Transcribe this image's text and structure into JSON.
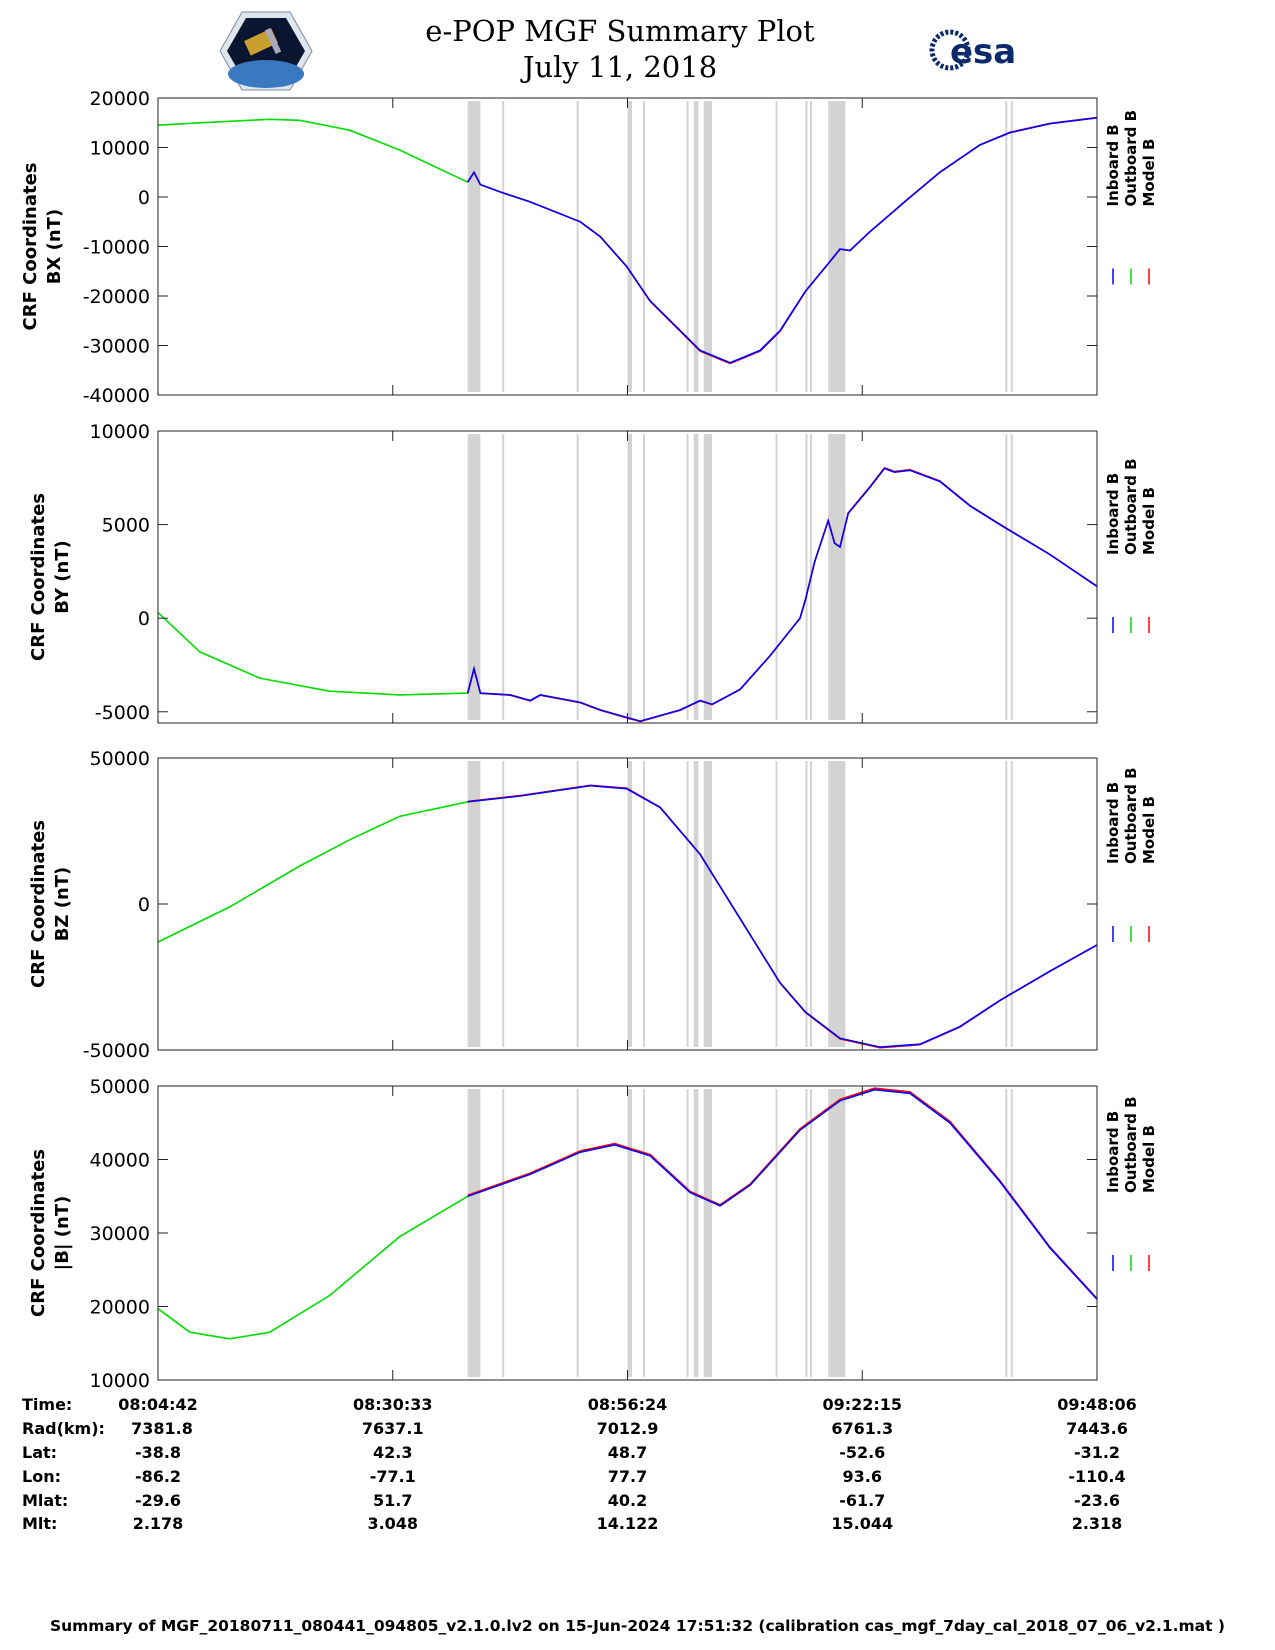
{
  "header": {
    "title": "e-POP MGF Summary Plot",
    "date": "July 11, 2018",
    "logo_left": "CASSIOPE",
    "logo_right": "esa"
  },
  "colors": {
    "inboard": "#0000ff",
    "outboard": "#00dd00",
    "model": "#ff0000",
    "gap_band": "#d3d3d3"
  },
  "chart_data": [
    {
      "type": "line",
      "ylabel": [
        "CRF Coordinates",
        "BX (nT)"
      ],
      "ylim": [
        -40000,
        20000
      ],
      "yticks": [
        "20000",
        "10000",
        "0",
        "-10000",
        "-20000",
        "-30000",
        "-40000"
      ],
      "ytick_values": [
        20000,
        10000,
        0,
        -10000,
        -20000,
        -30000,
        -40000
      ],
      "legend": [
        "Inboard B",
        "Outboard B",
        "Model B"
      ],
      "points": [
        [
          0,
          14500
        ],
        [
          4.6,
          15000
        ],
        [
          12.3,
          15700
        ],
        [
          15.6,
          15500
        ],
        [
          21.1,
          13500
        ],
        [
          26.6,
          9500
        ],
        [
          34.1,
          3000
        ],
        [
          34.8,
          5000
        ],
        [
          35.5,
          2500
        ],
        [
          37.7,
          1000
        ],
        [
          41.0,
          -1000
        ],
        [
          46.5,
          -5000
        ],
        [
          48.7,
          -8000
        ],
        [
          51.6,
          -14000
        ],
        [
          54.2,
          -21000
        ],
        [
          57.5,
          -27000
        ],
        [
          59.7,
          -31000
        ],
        [
          63.0,
          -33500
        ],
        [
          66.3,
          -31000
        ],
        [
          68.5,
          -27000
        ],
        [
          71.3,
          -19000
        ],
        [
          74.0,
          -13000
        ],
        [
          75.1,
          -10500
        ],
        [
          76.2,
          -10800
        ],
        [
          78.4,
          -7000
        ],
        [
          82.2,
          -1000
        ],
        [
          86.1,
          5000
        ],
        [
          90.5,
          10500
        ],
        [
          93.8,
          13000
        ],
        [
          98.2,
          14800
        ],
        [
          103.4,
          16000
        ]
      ]
    },
    {
      "type": "line",
      "ylabel": [
        "CRF Coordinates",
        "BY (nT)"
      ],
      "ylim": [
        -5600,
        10000
      ],
      "yticks": [
        "10000",
        "5000",
        "0",
        "-5000"
      ],
      "ytick_values": [
        10000,
        5000,
        0,
        -5000
      ],
      "legend": [
        "Inboard B",
        "Outboard B",
        "Model B"
      ],
      "points": [
        [
          0,
          300
        ],
        [
          4.6,
          -1800
        ],
        [
          11.2,
          -3200
        ],
        [
          18.9,
          -3900
        ],
        [
          26.6,
          -4100
        ],
        [
          34.1,
          -4000
        ],
        [
          34.8,
          -2700
        ],
        [
          35.5,
          -4000
        ],
        [
          38.8,
          -4100
        ],
        [
          41.0,
          -4400
        ],
        [
          42.1,
          -4100
        ],
        [
          46.5,
          -4500
        ],
        [
          48.7,
          -4900
        ],
        [
          51.6,
          -5300
        ],
        [
          53.1,
          -5500
        ],
        [
          55.3,
          -5200
        ],
        [
          57.5,
          -4900
        ],
        [
          59.7,
          -4400
        ],
        [
          61.0,
          -4600
        ],
        [
          64.1,
          -3800
        ],
        [
          67.4,
          -2000
        ],
        [
          70.7,
          0
        ],
        [
          71.3,
          1000
        ],
        [
          72.3,
          3000
        ],
        [
          73.8,
          5200
        ],
        [
          74.5,
          4000
        ],
        [
          75.1,
          3800
        ],
        [
          76.0,
          5600
        ],
        [
          78.4,
          7000
        ],
        [
          80.0,
          8000
        ],
        [
          81.1,
          7800
        ],
        [
          82.8,
          7900
        ],
        [
          86.1,
          7300
        ],
        [
          89.4,
          6000
        ],
        [
          92.7,
          5000
        ],
        [
          98.2,
          3400
        ],
        [
          103.4,
          1700
        ]
      ]
    },
    {
      "type": "line",
      "ylabel": [
        "CRF Coordinates",
        "BZ (nT)"
      ],
      "ylim": [
        -50000,
        50000
      ],
      "yticks": [
        "50000",
        "0",
        "-50000"
      ],
      "ytick_values": [
        50000,
        0,
        -50000
      ],
      "legend": [
        "Inboard B",
        "Outboard B",
        "Model B"
      ],
      "points": [
        [
          0,
          -13000
        ],
        [
          7.9,
          -1000
        ],
        [
          15.6,
          13000
        ],
        [
          21.1,
          22000
        ],
        [
          26.6,
          30000
        ],
        [
          34.1,
          35000
        ],
        [
          39.9,
          37000
        ],
        [
          47.6,
          40500
        ],
        [
          51.6,
          39500
        ],
        [
          55.3,
          33000
        ],
        [
          59.7,
          17000
        ],
        [
          64.1,
          -5000
        ],
        [
          68.5,
          -27000
        ],
        [
          71.3,
          -37000
        ],
        [
          75.1,
          -46000
        ],
        [
          79.5,
          -49000
        ],
        [
          83.9,
          -48000
        ],
        [
          88.3,
          -42000
        ],
        [
          92.7,
          -33000
        ],
        [
          98.2,
          -23000
        ],
        [
          103.4,
          -14000
        ]
      ]
    },
    {
      "type": "line",
      "ylabel": [
        "CRF Coordinates",
        "|B| (nT)"
      ],
      "ylim": [
        10000,
        50000
      ],
      "yticks": [
        "50000",
        "40000",
        "30000",
        "20000",
        "10000"
      ],
      "ytick_values": [
        50000,
        40000,
        30000,
        20000,
        10000
      ],
      "legend": [
        "Inboard B",
        "Outboard B",
        "Model B"
      ],
      "points": [
        [
          0,
          19700
        ],
        [
          3.5,
          16500
        ],
        [
          7.9,
          15600
        ],
        [
          12.3,
          16500
        ],
        [
          18.9,
          21500
        ],
        [
          26.6,
          29500
        ],
        [
          34.1,
          35000
        ],
        [
          41.0,
          38000
        ],
        [
          46.5,
          41000
        ],
        [
          50.3,
          42000
        ],
        [
          54.2,
          40500
        ],
        [
          58.6,
          35500
        ],
        [
          61.9,
          33700
        ],
        [
          65.2,
          36500
        ],
        [
          70.7,
          44000
        ],
        [
          75.1,
          48000
        ],
        [
          78.9,
          49500
        ],
        [
          82.8,
          49000
        ],
        [
          87.2,
          45000
        ],
        [
          92.7,
          37000
        ],
        [
          98.2,
          28000
        ],
        [
          103.4,
          21000
        ]
      ]
    }
  ],
  "x_range_minutes": [
    0,
    103.4
  ],
  "outboard_end_minute": 34.1,
  "gap_bands_minutes": [
    [
      34.1,
      35.5
    ],
    [
      37.9,
      38.0
    ],
    [
      46.1,
      46.2
    ],
    [
      51.7,
      52.2
    ],
    [
      53.4,
      53.5
    ],
    [
      58.2,
      58.3
    ],
    [
      59.0,
      59.5
    ],
    [
      60.1,
      61.0
    ],
    [
      68.0,
      68.1
    ],
    [
      71.3,
      71.4
    ],
    [
      71.8,
      71.9
    ],
    [
      73.8,
      75.7
    ],
    [
      93.3,
      93.4
    ],
    [
      93.9,
      94.0
    ]
  ],
  "table": {
    "labels": [
      "Time:",
      "Rad(km):",
      "Lat:",
      "Lon:",
      "Mlat:",
      "Mlt:"
    ],
    "columns": [
      [
        "08:04:42",
        "7381.8",
        "-38.8",
        "-86.2",
        "-29.6",
        "2.178"
      ],
      [
        "08:30:33",
        "7637.1",
        "42.3",
        "-77.1",
        "51.7",
        "3.048"
      ],
      [
        "08:56:24",
        "7012.9",
        "48.7",
        "77.7",
        "40.2",
        "14.122"
      ],
      [
        "09:22:15",
        "6761.3",
        "-52.6",
        "93.6",
        "-61.7",
        "15.044"
      ],
      [
        "09:48:06",
        "7443.6",
        "-31.2",
        "-110.4",
        "-23.6",
        "2.318"
      ]
    ]
  },
  "footer": "Summary of MGF_20180711_080441_094805_v2.1.0.lv2 on 15-Jun-2024 17:51:32 (calibration cas_mgf_7day_cal_2018_07_06_v2.1.mat )"
}
